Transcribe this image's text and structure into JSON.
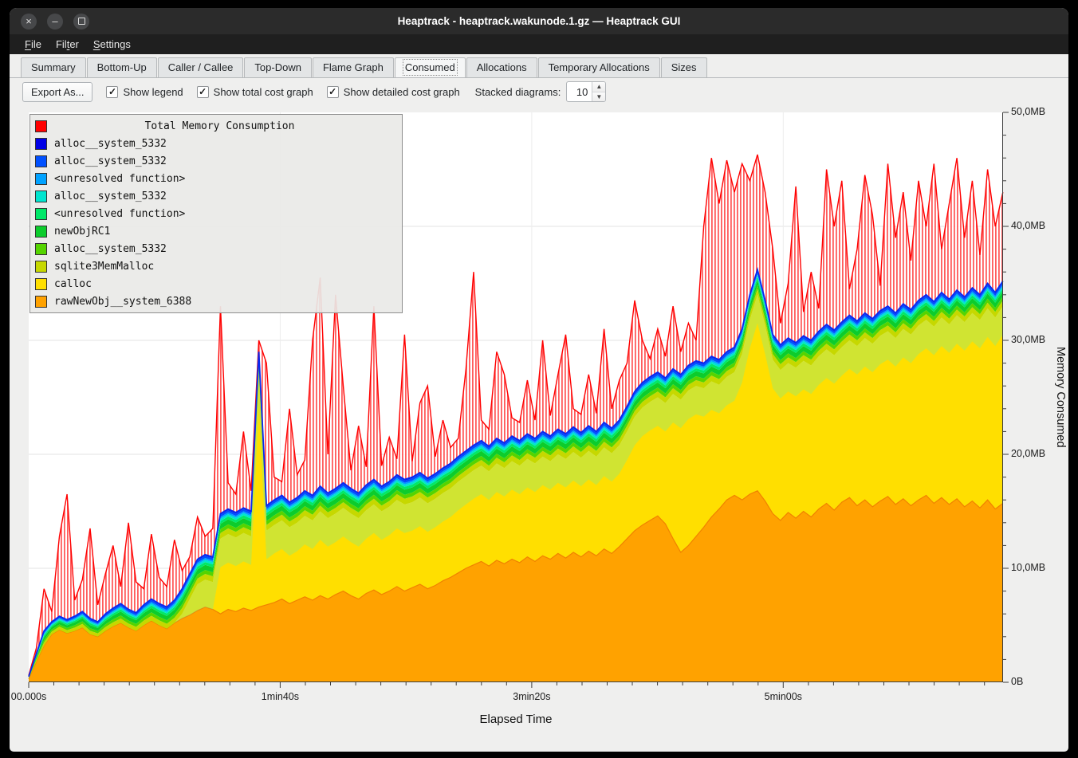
{
  "window": {
    "title": "Heaptrack - heaptrack.wakunode.1.gz — Heaptrack GUI"
  },
  "menu": {
    "items": [
      {
        "label": "File",
        "accel_index": 0
      },
      {
        "label": "Filter",
        "accel_index": 3
      },
      {
        "label": "Settings",
        "accel_index": 0
      }
    ]
  },
  "tabs": {
    "active": "Consumed",
    "items": [
      {
        "label": "Summary"
      },
      {
        "label": "Bottom-Up"
      },
      {
        "label": "Caller / Callee"
      },
      {
        "label": "Top-Down"
      },
      {
        "label": "Flame Graph"
      },
      {
        "label": "Consumed"
      },
      {
        "label": "Allocations"
      },
      {
        "label": "Temporary Allocations"
      },
      {
        "label": "Sizes"
      }
    ]
  },
  "toolbar": {
    "export_label": "Export As...",
    "checkboxes": [
      {
        "label": "Show legend",
        "checked": true
      },
      {
        "label": "Show total cost graph",
        "checked": true
      },
      {
        "label": "Show detailed cost graph",
        "checked": true
      }
    ],
    "stacked_label": "Stacked diagrams:",
    "stacked_value": "10"
  },
  "chart_data": {
    "type": "area",
    "title": "Total Memory Consumption",
    "xlabel": "Elapsed Time",
    "ylabel": "Memory Consumed",
    "x_range": [
      0,
      387.4
    ],
    "y_range": [
      0,
      50
    ],
    "x_step": 3.05,
    "x_ticks": [
      {
        "t": 0,
        "label": "00.000s"
      },
      {
        "t": 100,
        "label": "1min40s"
      },
      {
        "t": 200,
        "label": "3min20s"
      },
      {
        "t": 300,
        "label": "5min00s"
      }
    ],
    "y_ticks": [
      {
        "v": 0,
        "label": "0B"
      },
      {
        "v": 10,
        "label": "10,0MB"
      },
      {
        "v": 20,
        "label": "20,0MB"
      },
      {
        "v": 30,
        "label": "30,0MB"
      },
      {
        "v": 40,
        "label": "40,0MB"
      },
      {
        "v": 50,
        "label": "50,0MB"
      }
    ],
    "x_minor_tick": 10,
    "x_major_tick": 100,
    "y_minor_tick": 2,
    "y_major_tick": 10,
    "total": {
      "name": "Total Memory Consumption",
      "color": "#ff0000",
      "values": [
        0.6,
        3.0,
        8.2,
        6.2,
        12.8,
        16.5,
        7.2,
        9.0,
        13.5,
        6.8,
        9.5,
        12.0,
        8.4,
        14.0,
        8.8,
        8.2,
        13.0,
        9.2,
        8.4,
        12.5,
        9.8,
        11.0,
        14.5,
        12.8,
        13.5,
        33.0,
        17.5,
        16.5,
        22.0,
        16.8,
        30.0,
        28.0,
        18.0,
        17.6,
        24.0,
        18.2,
        19.5,
        30.0,
        35.5,
        20.0,
        34.0,
        26.0,
        18.6,
        22.5,
        18.9,
        33.0,
        19.0,
        21.5,
        19.6,
        30.5,
        19.4,
        24.5,
        26.0,
        19.8,
        23.0,
        20.6,
        21.4,
        27.5,
        36.0,
        23.0,
        22.2,
        29.0,
        27.0,
        23.2,
        22.8,
        26.5,
        23.0,
        30.0,
        23.4,
        27.0,
        30.5,
        24.0,
        23.5,
        27.0,
        23.6,
        31.0,
        24.0,
        26.5,
        28.0,
        33.5,
        30.0,
        28.4,
        31.0,
        28.6,
        33.0,
        29.0,
        31.5,
        30.0,
        40.0,
        46.0,
        42.0,
        45.8,
        43.0,
        45.5,
        44.0,
        46.3,
        43.0,
        38.0,
        31.5,
        35.0,
        43.5,
        32.5,
        36.0,
        32.8,
        45.0,
        40.0,
        44.0,
        34.5,
        38.0,
        44.5,
        41.0,
        34.8,
        45.5,
        39.0,
        43.0,
        37.0,
        44.0,
        40.0,
        45.5,
        38.0,
        42.0,
        46.0,
        39.0,
        44.0,
        37.5,
        45.0,
        40.0,
        43.0
      ]
    },
    "stacked_top": [
      0.5,
      2.5,
      4.5,
      5.3,
      5.8,
      5.5,
      5.8,
      6.2,
      5.6,
      5.3,
      6.0,
      6.5,
      6.9,
      6.4,
      6.1,
      6.8,
      7.3,
      6.9,
      6.6,
      7.2,
      8.2,
      9.5,
      10.8,
      11.2,
      11.0,
      14.8,
      15.2,
      14.9,
      15.3,
      15.0,
      29.0,
      15.5,
      16.0,
      16.4,
      15.8,
      16.2,
      16.8,
      16.4,
      17.2,
      16.6,
      17.0,
      17.5,
      17.0,
      16.6,
      17.3,
      17.8,
      17.2,
      17.6,
      18.2,
      17.8,
      18.0,
      18.4,
      17.9,
      18.3,
      18.8,
      19.2,
      19.8,
      20.3,
      20.8,
      21.2,
      20.7,
      21.4,
      21.0,
      21.6,
      21.2,
      21.8,
      21.4,
      22.0,
      21.6,
      22.2,
      21.8,
      22.4,
      21.9,
      22.5,
      22.0,
      22.8,
      22.3,
      23.0,
      24.2,
      25.5,
      26.3,
      26.8,
      27.2,
      26.7,
      27.5,
      27.0,
      27.8,
      28.2,
      28.0,
      28.6,
      28.3,
      29.0,
      29.4,
      31.0,
      34.0,
      36.2,
      33.5,
      30.5,
      29.6,
      30.2,
      29.8,
      30.4,
      30.0,
      30.8,
      31.4,
      30.9,
      31.6,
      32.2,
      31.7,
      32.4,
      31.9,
      32.6,
      33.0,
      32.4,
      33.2,
      32.7,
      33.5,
      34.0,
      33.4,
      34.2,
      33.6,
      34.4,
      33.8,
      34.6,
      34.0,
      35.0,
      34.2,
      35.2
    ],
    "series": [
      {
        "name": "rawNewObj__system_6388",
        "color": "#ffa200",
        "role": "base",
        "values": [
          0.3,
          1.8,
          3.2,
          4.2,
          4.6,
          4.3,
          4.5,
          4.8,
          4.2,
          4.0,
          4.5,
          4.9,
          5.2,
          4.8,
          4.5,
          5.0,
          5.4,
          5.0,
          4.7,
          5.2,
          5.6,
          5.9,
          6.3,
          6.6,
          6.4,
          6.0,
          6.4,
          6.2,
          6.5,
          6.3,
          6.6,
          6.8,
          7.0,
          7.3,
          6.9,
          7.2,
          7.5,
          7.2,
          7.6,
          7.3,
          7.7,
          8.0,
          7.6,
          7.3,
          7.8,
          8.1,
          7.7,
          8.0,
          8.4,
          8.0,
          8.3,
          8.6,
          8.2,
          8.5,
          8.9,
          9.2,
          9.6,
          10.0,
          10.3,
          10.6,
          10.2,
          10.7,
          10.4,
          10.8,
          10.5,
          11.0,
          10.6,
          11.1,
          10.8,
          11.3,
          10.9,
          11.4,
          11.0,
          11.5,
          11.1,
          11.7,
          11.3,
          11.9,
          12.6,
          13.3,
          13.8,
          14.2,
          14.6,
          13.9,
          12.6,
          11.4,
          12.0,
          12.8,
          13.6,
          14.5,
          15.2,
          16.0,
          16.4,
          16.0,
          16.5,
          16.8,
          15.9,
          14.8,
          14.2,
          14.9,
          14.4,
          15.0,
          14.5,
          15.2,
          15.7,
          15.1,
          15.8,
          16.2,
          15.5,
          16.0,
          15.4,
          15.9,
          16.3,
          15.6,
          16.1,
          15.5,
          16.0,
          16.4,
          15.7,
          16.2,
          15.6,
          16.1,
          15.4,
          15.9,
          15.3,
          16.0,
          15.2,
          15.7
        ]
      },
      {
        "name": "calloc",
        "color": "#ffdf00",
        "role": "fill"
      },
      {
        "name": "sqlite3MemMalloc",
        "color": "#c6d800",
        "role": "band",
        "thickness": 0.5
      },
      {
        "name": "alloc__system_5332",
        "color": "#55d400",
        "role": "band",
        "thickness": 0.35
      },
      {
        "name": "newObjRC1",
        "color": "#0ccc2c",
        "role": "band",
        "thickness": 0.45
      },
      {
        "name": "<unresolved function>",
        "color": "#00e868",
        "role": "band",
        "thickness": 0.25
      },
      {
        "name": "alloc__system_5332",
        "color": "#00e5cf",
        "role": "band",
        "thickness": 0.2
      },
      {
        "name": "<unresolved function>",
        "color": "#00a2ff",
        "role": "band",
        "thickness": 0.15
      },
      {
        "name": "alloc__system_5332",
        "color": "#0050ff",
        "role": "band",
        "thickness": 0.2
      },
      {
        "name": "alloc__system_5332",
        "color": "#0000e6",
        "role": "band",
        "thickness": 0.1
      }
    ]
  }
}
